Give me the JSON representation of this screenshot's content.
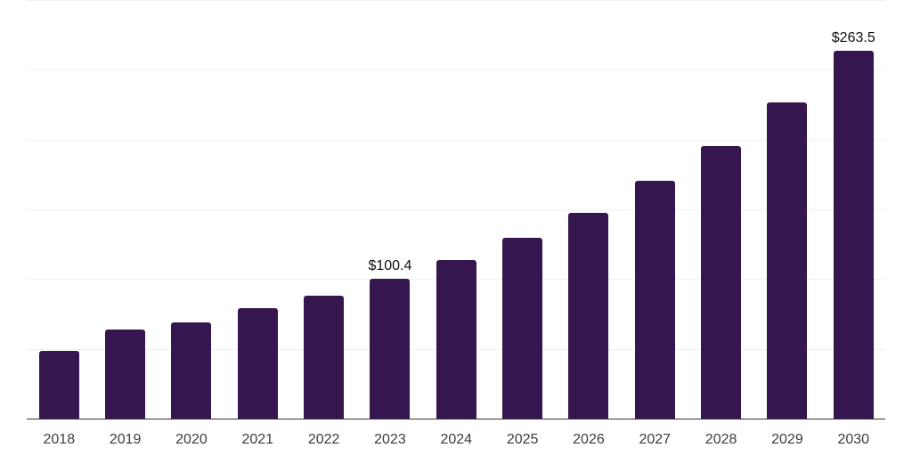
{
  "chart_data": {
    "type": "bar",
    "title": "",
    "xlabel": "",
    "ylabel": "",
    "categories": [
      "2018",
      "2019",
      "2020",
      "2021",
      "2022",
      "2023",
      "2024",
      "2025",
      "2026",
      "2027",
      "2028",
      "2029",
      "2030"
    ],
    "values": [
      48.5,
      63.6,
      68.9,
      79.3,
      88.3,
      100.4,
      113.6,
      129.4,
      147.4,
      170.2,
      195.3,
      226.8,
      263.5
    ],
    "data_labels": {
      "2023": "$100.4",
      "2030": "$263.5"
    },
    "ylim": [
      0,
      300
    ],
    "gridline_values": [
      50,
      100,
      150,
      200,
      250,
      300
    ],
    "grid": "horizontal",
    "legend": "none",
    "y_axis_labels_visible": false,
    "colors": {
      "bar": "#36164e",
      "gridline": "#f0f0f0",
      "axis": "#333333",
      "value_label": "#101010",
      "tick_label": "#3c3c3c",
      "background": "#ffffff"
    }
  }
}
